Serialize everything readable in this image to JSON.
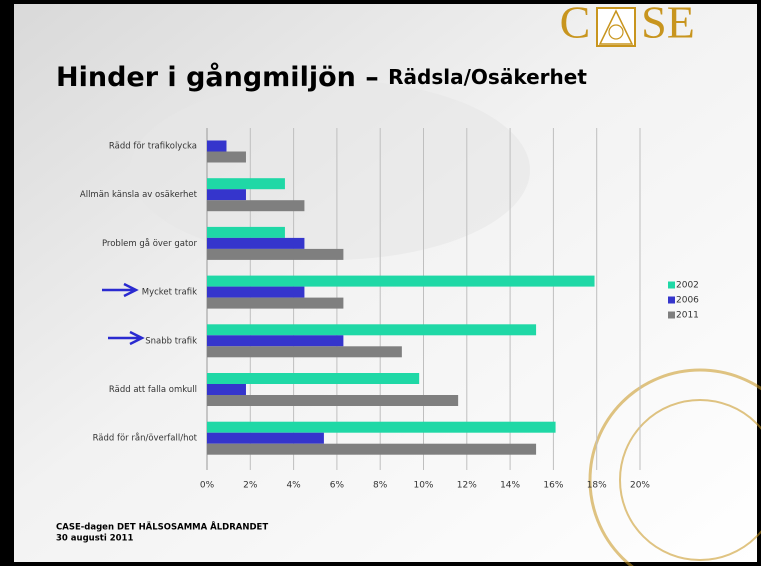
{
  "chart_data": {
    "type": "hbar",
    "logo": [
      "C",
      "SE"
    ],
    "title": "Hinder i gångmiljön – ",
    "subtitle": "Rädsla/Osäkerhet",
    "categories": [
      "Rädd för trafikolycka",
      "Allmän känsla av osäkerhet",
      "Problem gå över gator",
      "Mycket trafik",
      "Snabb trafik",
      "Rädd att falla omkull",
      "Rädd för rån/överfall/hot"
    ],
    "series": [
      {
        "name": "2002",
        "color": "#1fd8a6",
        "values": [
          null,
          3.6,
          3.6,
          17.9,
          15.2,
          9.8,
          16.1
        ]
      },
      {
        "name": "2006",
        "color": "#3535cc",
        "values": [
          0.9,
          1.8,
          4.5,
          4.5,
          6.3,
          1.8,
          5.4
        ]
      },
      {
        "name": "2011",
        "color": "#7f7f7f",
        "values": [
          1.8,
          4.5,
          6.3,
          6.3,
          9.0,
          11.6,
          15.2
        ]
      }
    ],
    "xlim": [
      0,
      20
    ],
    "xticks": [
      {
        "value": 0,
        "label": "0%"
      },
      {
        "value": 2,
        "label": "2%"
      },
      {
        "value": 4,
        "label": "4%"
      },
      {
        "value": 6,
        "label": "6%"
      },
      {
        "value": 8,
        "label": "8%"
      },
      {
        "value": 10,
        "label": "10%"
      },
      {
        "value": 12,
        "label": "12%"
      },
      {
        "value": 14,
        "label": "14%"
      },
      {
        "value": 16,
        "label": "16%"
      },
      {
        "value": 18,
        "label": "18%"
      },
      {
        "value": 20,
        "label": "20%"
      }
    ],
    "grid": true,
    "legend": "right",
    "footer": [
      "CASE-dagen DET HÄLSOSAMMA ÅLDRANDET",
      "30 augusti 2011"
    ]
  }
}
